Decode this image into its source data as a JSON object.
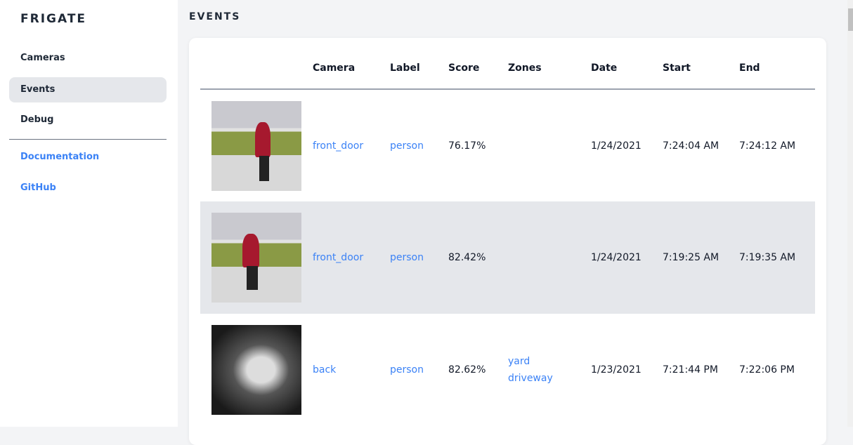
{
  "sidebar": {
    "brand": "FRIGATE",
    "items": [
      {
        "label": "Cameras"
      },
      {
        "label": "Events"
      },
      {
        "label": "Debug"
      }
    ],
    "links": [
      {
        "label": "Documentation"
      },
      {
        "label": "GitHub"
      }
    ]
  },
  "page": {
    "title": "EVENTS"
  },
  "table": {
    "headers": [
      "Camera",
      "Label",
      "Score",
      "Zones",
      "Date",
      "Start",
      "End"
    ],
    "rows": [
      {
        "camera": "front_door",
        "label": "person",
        "score": "76.17%",
        "zones": [
          "",
          ""
        ],
        "date": "1/24/2021",
        "start": "7:24:04 AM",
        "end": "7:24:12 AM"
      },
      {
        "camera": "front_door",
        "label": "person",
        "score": "82.42%",
        "zones": [
          "",
          ""
        ],
        "date": "1/24/2021",
        "start": "7:19:25 AM",
        "end": "7:19:35 AM"
      },
      {
        "camera": "back",
        "label": "person",
        "score": "82.62%",
        "zones": [
          "yard",
          "driveway"
        ],
        "date": "1/23/2021",
        "start": "7:21:44 PM",
        "end": "7:22:06 PM"
      }
    ]
  },
  "colors": {
    "accent": "#3b82f6",
    "active_bg": "#e5e7eb"
  }
}
